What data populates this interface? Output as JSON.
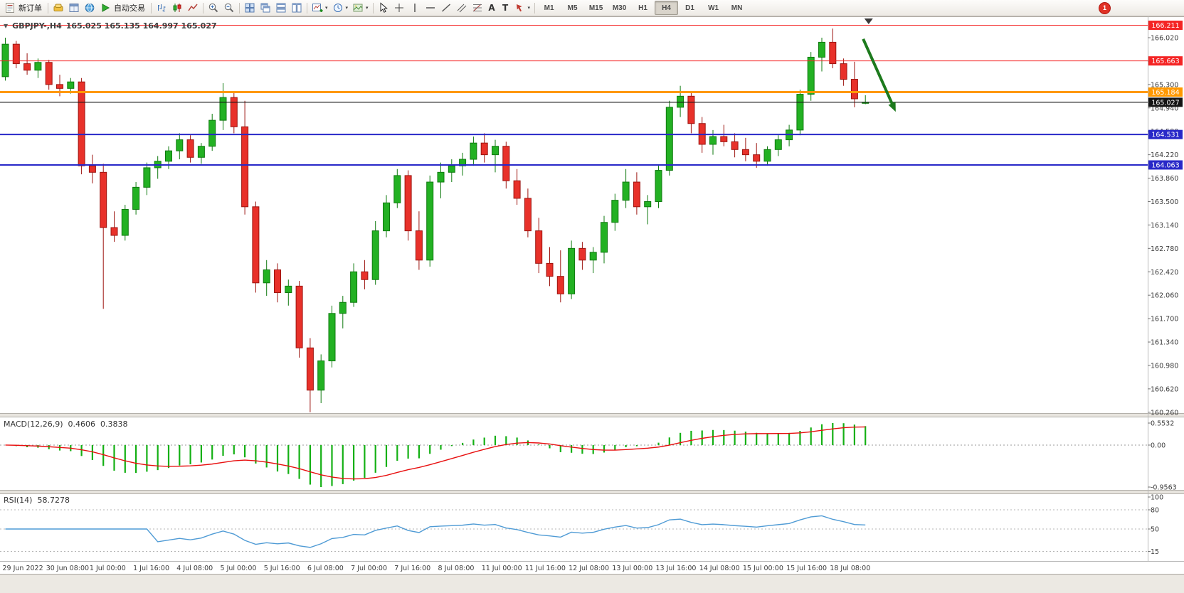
{
  "toolbar": {
    "new_order": "新订单",
    "autotrading": "自动交易",
    "timeframes": [
      "M1",
      "M5",
      "M15",
      "M30",
      "H1",
      "H4",
      "D1",
      "W1",
      "MN"
    ],
    "active_timeframe": "H4",
    "notification_count": "1",
    "tools": {
      "text_tool": "A",
      "label_tool": "T"
    }
  },
  "icons": {
    "caret": "▾",
    "collapse": "▼"
  },
  "header": {
    "symbol": "GBPJPY-,H4",
    "ohlc": "165.025 165.135 164.997 165.027"
  },
  "indicators": {
    "macd": {
      "label": "MACD(12,26,9)",
      "main": "0.4606",
      "signal": "0.3838",
      "scale": [
        "0.5532",
        "0.00",
        "-0.9563"
      ],
      "colors": {
        "hist": "#14b014",
        "signal": "#e81010"
      }
    },
    "rsi": {
      "label": "RSI(14)",
      "value": "58.7278",
      "levels": [
        100,
        80,
        50,
        15
      ],
      "color": "#4f9bd5"
    }
  },
  "chart_data": {
    "type": "candlestick",
    "symbol": "GBPJPY-",
    "period": "H4",
    "colors": {
      "up": "#23b123",
      "up_stroke": "#0f7a0f",
      "down": "#e8312a",
      "down_stroke": "#9c1510"
    },
    "y_axis": {
      "ticks": [
        "166.020",
        "165.660",
        "165.300",
        "164.940",
        "164.580",
        "164.220",
        "163.860",
        "163.500",
        "163.140",
        "162.780",
        "162.420",
        "162.060",
        "161.700",
        "161.340",
        "160.980",
        "160.620",
        "160.260"
      ],
      "price_step": 0.36
    },
    "x_axis": {
      "labels": [
        "29 Jun 2022",
        "30 Jun 08:00",
        "1 Jul 00:00",
        "1 Jul 16:00",
        "4 Jul 08:00",
        "5 Jul 00:00",
        "5 Jul 16:00",
        "6 Jul 08:00",
        "7 Jul 00:00",
        "7 Jul 16:00",
        "8 Jul 08:00",
        "11 Jul 00:00",
        "11 Jul 16:00",
        "12 Jul 08:00",
        "13 Jul 00:00",
        "13 Jul 16:00",
        "14 Jul 08:00",
        "15 Jul 00:00",
        "15 Jul 16:00",
        "18 Jul 08:00"
      ],
      "label_every_n_bars": 4
    },
    "levels": [
      {
        "price": 166.211,
        "color": "#f42424",
        "width": 1,
        "badge": "166.211"
      },
      {
        "price": 165.663,
        "color": "#f42424",
        "width": 1,
        "badge": "165.663"
      },
      {
        "price": 165.184,
        "color": "#ff9800",
        "width": 3,
        "badge": "165.184"
      },
      {
        "price": 164.531,
        "color": "#2828c8",
        "width": 2,
        "badge": "164.531"
      },
      {
        "price": 164.063,
        "color": "#2828c8",
        "width": 2,
        "badge": "164.063"
      }
    ],
    "bid": {
      "price": 165.027,
      "badge": "165.027",
      "color": "#141414"
    },
    "candles": [
      [
        165.42,
        166.02,
        165.36,
        165.92
      ],
      [
        165.92,
        165.97,
        165.55,
        165.62
      ],
      [
        165.62,
        165.78,
        165.45,
        165.52
      ],
      [
        165.52,
        165.7,
        165.4,
        165.64
      ],
      [
        165.64,
        165.68,
        165.22,
        165.3
      ],
      [
        165.3,
        165.45,
        165.12,
        165.24
      ],
      [
        165.24,
        165.4,
        165.16,
        165.34
      ],
      [
        165.34,
        165.4,
        163.92,
        164.05
      ],
      [
        164.05,
        164.22,
        163.78,
        163.95
      ],
      [
        163.95,
        164.08,
        161.85,
        163.1
      ],
      [
        163.1,
        163.35,
        162.88,
        162.98
      ],
      [
        162.98,
        163.45,
        162.9,
        163.38
      ],
      [
        163.38,
        163.8,
        163.3,
        163.72
      ],
      [
        163.72,
        164.1,
        163.6,
        164.02
      ],
      [
        164.02,
        164.2,
        163.85,
        164.12
      ],
      [
        164.12,
        164.35,
        164.0,
        164.28
      ],
      [
        164.28,
        164.55,
        164.15,
        164.45
      ],
      [
        164.45,
        164.52,
        164.1,
        164.18
      ],
      [
        164.18,
        164.4,
        164.08,
        164.35
      ],
      [
        164.35,
        164.85,
        164.28,
        164.75
      ],
      [
        164.75,
        165.32,
        164.6,
        165.1
      ],
      [
        165.1,
        165.18,
        164.55,
        164.65
      ],
      [
        164.65,
        165.05,
        163.3,
        163.42
      ],
      [
        163.42,
        163.5,
        162.1,
        162.25
      ],
      [
        162.25,
        162.6,
        162.05,
        162.45
      ],
      [
        162.45,
        162.55,
        161.95,
        162.1
      ],
      [
        162.1,
        162.3,
        161.9,
        162.2
      ],
      [
        162.2,
        162.28,
        161.1,
        161.25
      ],
      [
        161.25,
        161.4,
        160.26,
        160.6
      ],
      [
        160.6,
        161.15,
        160.4,
        161.05
      ],
      [
        161.05,
        161.9,
        160.95,
        161.78
      ],
      [
        161.78,
        162.05,
        161.55,
        161.95
      ],
      [
        161.95,
        162.55,
        161.88,
        162.42
      ],
      [
        162.42,
        162.6,
        162.15,
        162.3
      ],
      [
        162.3,
        163.2,
        162.22,
        163.05
      ],
      [
        163.05,
        163.6,
        162.95,
        163.48
      ],
      [
        163.48,
        164.0,
        163.4,
        163.9
      ],
      [
        163.9,
        163.98,
        162.9,
        163.05
      ],
      [
        163.05,
        163.35,
        162.45,
        162.6
      ],
      [
        162.6,
        163.9,
        162.5,
        163.8
      ],
      [
        163.8,
        164.1,
        163.55,
        163.95
      ],
      [
        163.95,
        164.15,
        163.8,
        164.05
      ],
      [
        164.05,
        164.25,
        163.9,
        164.15
      ],
      [
        164.15,
        164.5,
        164.05,
        164.4
      ],
      [
        164.4,
        164.55,
        164.1,
        164.22
      ],
      [
        164.22,
        164.45,
        163.95,
        164.35
      ],
      [
        164.35,
        164.42,
        163.7,
        163.82
      ],
      [
        163.82,
        164.0,
        163.45,
        163.55
      ],
      [
        163.55,
        163.7,
        162.95,
        163.05
      ],
      [
        163.05,
        163.25,
        162.4,
        162.55
      ],
      [
        162.55,
        162.8,
        162.2,
        162.35
      ],
      [
        162.35,
        162.75,
        161.95,
        162.08
      ],
      [
        162.08,
        162.9,
        162.0,
        162.78
      ],
      [
        162.78,
        162.88,
        162.45,
        162.6
      ],
      [
        162.6,
        162.8,
        162.4,
        162.72
      ],
      [
        162.72,
        163.28,
        162.55,
        163.18
      ],
      [
        163.18,
        163.62,
        163.05,
        163.52
      ],
      [
        163.52,
        164.0,
        163.4,
        163.8
      ],
      [
        163.8,
        163.95,
        163.3,
        163.42
      ],
      [
        163.42,
        163.6,
        163.15,
        163.5
      ],
      [
        163.5,
        164.05,
        163.4,
        163.98
      ],
      [
        163.98,
        165.05,
        163.9,
        164.95
      ],
      [
        164.95,
        165.28,
        164.8,
        165.12
      ],
      [
        165.12,
        165.2,
        164.55,
        164.7
      ],
      [
        164.7,
        164.8,
        164.25,
        164.38
      ],
      [
        164.38,
        164.6,
        164.22,
        164.5
      ],
      [
        164.5,
        164.68,
        164.35,
        164.42
      ],
      [
        164.42,
        164.55,
        164.18,
        164.3
      ],
      [
        164.3,
        164.48,
        164.12,
        164.22
      ],
      [
        164.22,
        164.4,
        164.02,
        164.12
      ],
      [
        164.12,
        164.35,
        164.05,
        164.3
      ],
      [
        164.3,
        164.52,
        164.2,
        164.45
      ],
      [
        164.45,
        164.68,
        164.35,
        164.6
      ],
      [
        164.6,
        165.22,
        164.52,
        165.15
      ],
      [
        165.15,
        165.8,
        165.05,
        165.72
      ],
      [
        165.72,
        166.02,
        165.5,
        165.95
      ],
      [
        165.95,
        166.16,
        165.55,
        165.62
      ],
      [
        165.62,
        165.7,
        165.28,
        165.38
      ],
      [
        165.38,
        165.65,
        164.95,
        165.08
      ],
      [
        165.025,
        165.135,
        164.997,
        165.027
      ]
    ],
    "annotation_arrow": {
      "from_bar": 78.8,
      "from_price": 166.0,
      "to_bar": 81.6,
      "to_price": 164.95,
      "color": "#1d7a1d"
    },
    "shift_marker_bar": 79.3
  }
}
